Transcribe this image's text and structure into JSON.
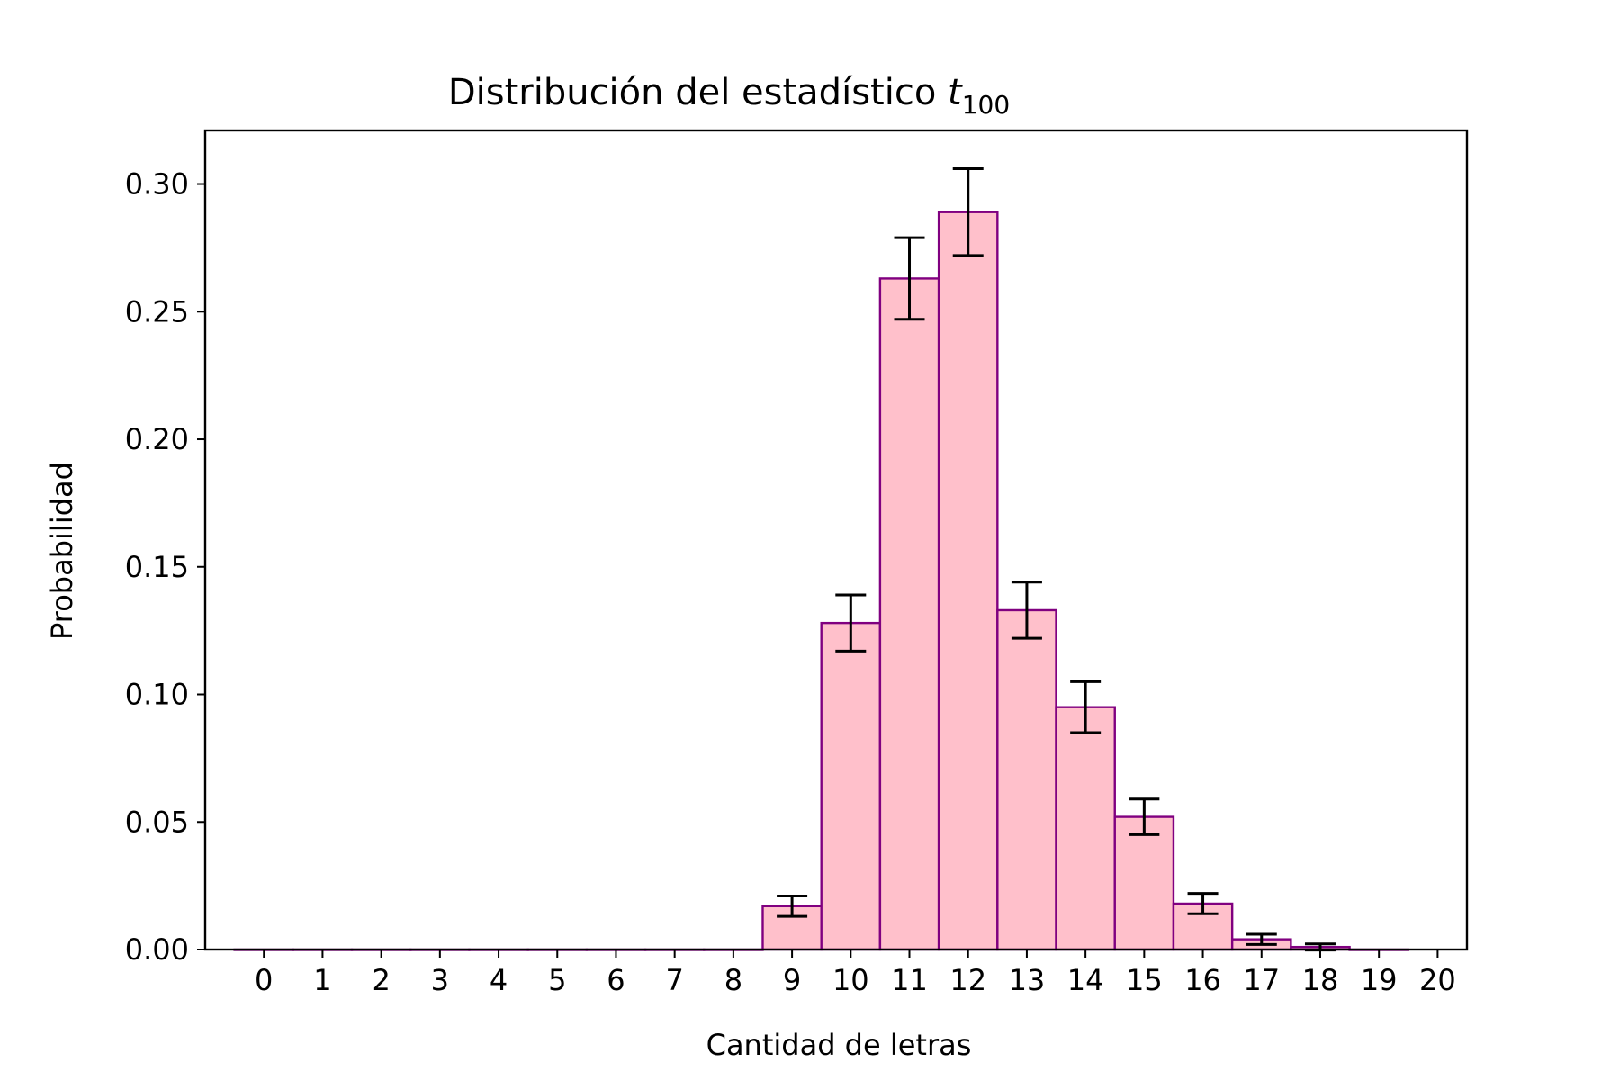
{
  "chart_data": {
    "type": "bar",
    "title": "Distribución del estadístico ",
    "title_math_base": "t",
    "title_math_sub": "100",
    "xlabel": "Cantidad de letras",
    "ylabel": "Probabilidad",
    "categories": [
      "0",
      "1",
      "2",
      "3",
      "4",
      "5",
      "6",
      "7",
      "8",
      "9",
      "10",
      "11",
      "12",
      "13",
      "14",
      "15",
      "16",
      "17",
      "18",
      "19",
      "20"
    ],
    "x": [
      0,
      1,
      2,
      3,
      4,
      5,
      6,
      7,
      8,
      9,
      10,
      11,
      12,
      13,
      14,
      15,
      16,
      17,
      18,
      19
    ],
    "values": [
      0.0,
      0.0,
      0.0,
      0.0,
      0.0,
      0.0,
      0.0,
      0.0,
      0.0,
      0.017,
      0.128,
      0.263,
      0.289,
      0.133,
      0.095,
      0.052,
      0.018,
      0.004,
      0.001,
      0.0
    ],
    "errors": [
      0.0,
      0.0,
      0.0,
      0.0,
      0.0,
      0.0,
      0.0,
      0.0,
      0.0,
      0.004,
      0.011,
      0.016,
      0.017,
      0.011,
      0.01,
      0.007,
      0.004,
      0.002,
      0.0012,
      0.0
    ],
    "xlim": [
      -1.0,
      20.5
    ],
    "ylim": [
      0.0,
      0.321
    ],
    "yticks": [
      "0.00",
      "0.05",
      "0.10",
      "0.15",
      "0.20",
      "0.25",
      "0.30"
    ],
    "grid": false,
    "colors": {
      "bar_fill": "#ffc0cb",
      "bar_edge": "#800080",
      "error": "#000000",
      "axis": "#000000"
    }
  }
}
